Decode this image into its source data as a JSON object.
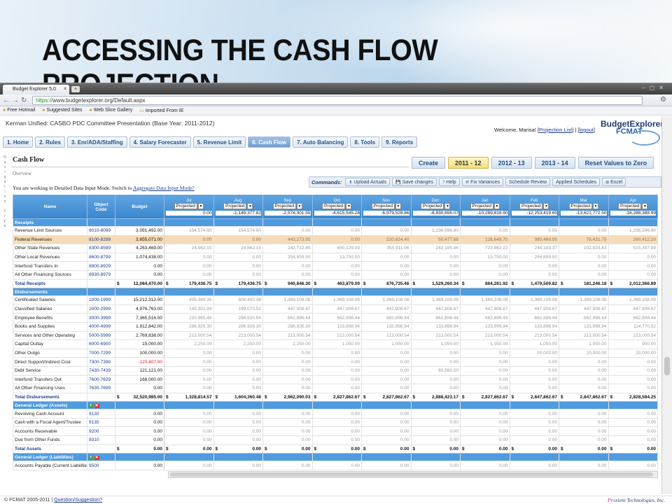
{
  "slide": {
    "title": "ACCESSING THE CASH FLOW PROJECTION"
  },
  "browser": {
    "tab_title": "Budget Explorer 5.0",
    "url_scheme": "https://",
    "url_rest": "www.budgetexplorer.org/Default.aspx",
    "bookmarks": [
      "Free Hotmail",
      "Suggested Sites",
      "Web Slice Gallery",
      "Imported From IE"
    ]
  },
  "app": {
    "district_line": "Kerman Unified: CASBO PDC Committee Presentation (Base Year: 2011-2012)",
    "welcome": {
      "prefix": "Welcome, Marisa! [",
      "projection_link": "Projection List",
      "mid": "] | [",
      "logout_link": "logout",
      "suffix": "]"
    },
    "logo": {
      "name": "BudgetExplorer",
      "sub": "FCMAT"
    },
    "nav": [
      "1. Home",
      "2. Rules",
      "3. Enr/ADA/Staffing",
      "4. Salary Forecaster",
      "5. Revenue Limit",
      "6. Cash Flow",
      "7. Auto Balancing",
      "8. Tools",
      "9. Reports"
    ],
    "vertical_nav": "Navigation Tree",
    "page_title": "Cash Flow",
    "overview": "Overview",
    "year_tabs": [
      "Create",
      "2011 - 12",
      "2012 - 13",
      "2013 - 14",
      "Reset Values to Zero"
    ],
    "mode_text": "You are working in Detailed Data Input Mode. Switch to",
    "mode_link": "Aggregate Data Input Mode?",
    "commands_label": "Commands:",
    "commands": [
      "Upload Actuals",
      "Save changes",
      "Help",
      "Fix Variances",
      "Schedule Review",
      "Applied Schedules",
      "Excel"
    ]
  },
  "grid": {
    "col_name": "Name",
    "col_code": "Object Code",
    "col_budget": "Budget",
    "projected": "Projected",
    "months": [
      "Jul",
      "Aug",
      "Sep",
      "Oct",
      "Nov",
      "Dec",
      "Jan",
      "Feb",
      "Mar",
      "Apr"
    ],
    "opening": [
      "0.00",
      "-1,149,377.82",
      "-2,574,301.55",
      "-4,615,545.28",
      "-6,979,528.86",
      "-8,930,656.07",
      "-10,289,818.90",
      "-12,253,419.65",
      "-13,621,772.50",
      "-16,288,388.99"
    ],
    "sections": [
      {
        "title": "Receipts",
        "rows": [
          {
            "name": "Revenue Limit Sources",
            "code": "8010-8099",
            "budget": "3,091,492.00",
            "values": [
              "154,574.60",
              "154,574.60",
              "0.00",
              "0.00",
              "0.00",
              "1,236,596.80",
              "0.00",
              "0.00",
              "0.00",
              "1,236,596.80"
            ]
          },
          {
            "name": "Federal Revenues",
            "code": "8100-8299",
            "budget": "3,655,071.00",
            "hilite": true,
            "values": [
              "0.00",
              "0.00",
              "443,273.95",
              "0.00",
              "520,824.40",
              "50,477.68",
              "126,649.70",
              "980,466.95",
              "78,421.75",
              "260,412.20"
            ]
          },
          {
            "name": "Other State Revenues",
            "code": "8300-8599",
            "budget": "4,263,469.00",
            "values": [
              "24,862.15",
              "24,862.15",
              "242,712.85",
              "450,129.09",
              "355,911.06",
              "242,185.86",
              "723,862.22",
              "244,183.37",
              "102,824.43",
              "515,357.89"
            ]
          },
          {
            "name": "Other Local Revenues",
            "code": "8600-8799",
            "budget": "1,074,438.00",
            "values": [
              "0.00",
              "0.00",
              "254,859.50",
              "13,750.00",
              "0.00",
              "0.00",
              "13,750.00",
              "254,859.50",
              "0.00",
              "0.00"
            ]
          },
          {
            "name": "Interfund Transfers In",
            "code": "8900-8929",
            "budget": "0.00",
            "values": [
              "0.00",
              "0.00",
              "0.00",
              "0.00",
              "0.00",
              "0.00",
              "0.00",
              "0.00",
              "0.00",
              "0.00"
            ]
          },
          {
            "name": "All Other Financing Sources",
            "code": "8930-8979",
            "budget": "0.00",
            "values": [
              "0.00",
              "0.00",
              "0.00",
              "0.00",
              "0.00",
              "0.00",
              "0.00",
              "0.00",
              "0.00",
              "0.00"
            ]
          }
        ],
        "total": {
          "name": "Total Receipts",
          "budget": "12,084,470.00",
          "values": [
            "179,436.75",
            "179,436.75",
            "940,846.30",
            "463,879.09",
            "876,735.46",
            "1,529,260.34",
            "864,261.92",
            "1,479,509.82",
            "181,246.18",
            "2,012,366.89"
          ]
        }
      },
      {
        "title": "Disbursements",
        "rows": [
          {
            "name": "Certificated Salaries",
            "code": "1000-1999",
            "budget": "15,212,312.00",
            "values": [
              "456,369.36",
              "608,492.48",
              "1,369,108.08",
              "1,369,108.08",
              "1,369,108.08",
              "1,369,108.08",
              "1,369,108.08",
              "1,369,108.08",
              "1,369,108.08",
              "1,369,108.08"
            ]
          },
          {
            "name": "Classified Salaries",
            "code": "2000-2999",
            "budget": "4,976,763.00",
            "values": [
              "149,302.89",
              "199,070.52",
              "447,908.67",
              "447,908.67",
              "447,908.67",
              "447,908.67",
              "447,908.67",
              "447,908.67",
              "447,908.67",
              "447,908.67"
            ]
          },
          {
            "name": "Employee Benefits",
            "code": "3000-3999",
            "budget": "7,365,516.00",
            "values": [
              "220,965.48",
              "294,620.64",
              "662,896.44",
              "662,896.44",
              "662,896.44",
              "662,896.44",
              "662,896.44",
              "662,896.44",
              "662,896.44",
              "662,896.44"
            ]
          },
          {
            "name": "Books and Supplies",
            "code": "4000-4999",
            "budget": "1,912,842.00",
            "values": [
              "286,926.30",
              "286,926.30",
              "286,926.30",
              "133,898.94",
              "133,898.94",
              "133,898.94",
              "133,898.94",
              "133,898.94",
              "133,898.94",
              "114,770.52"
            ]
          },
          {
            "name": "Services and Other Operating",
            "code": "5000-5999",
            "budget": "2,769,838.00",
            "values": [
              "213,000.54",
              "213,000.54",
              "213,000.54",
              "213,000.54",
              "213,000.54",
              "213,000.54",
              "213,000.54",
              "213,000.54",
              "213,000.54",
              "213,000.54"
            ]
          },
          {
            "name": "Capital Outlay",
            "code": "6000-6900",
            "budget": "15,000.00",
            "values": [
              "2,250.00",
              "2,250.00",
              "2,250.00",
              "1,050.00",
              "1,050.00",
              "1,050.00",
              "1,050.00",
              "1,050.00",
              "1,050.00",
              "900.00"
            ]
          },
          {
            "name": "Other Outgo",
            "code": "7000-7299",
            "budget": "100,000.00",
            "values": [
              "0.00",
              "0.00",
              "0.00",
              "0.00",
              "0.00",
              "0.00",
              "0.00",
              "20,000.00",
              "20,000.00",
              "20,000.00"
            ]
          },
          {
            "name": "Direct Support/Indirect Cost",
            "code": "7300-7399",
            "budget": "-120,407.00",
            "neg": true,
            "values": [
              "0.00",
              "0.00",
              "0.00",
              "0.00",
              "0.00",
              "0.00",
              "0.00",
              "0.00",
              "0.00",
              "0.00"
            ]
          },
          {
            "name": "Debt Service",
            "code": "7430-7439",
            "budget": "121,121.00",
            "values": [
              "0.00",
              "0.00",
              "0.00",
              "0.00",
              "0.00",
              "60,560.50",
              "0.00",
              "0.00",
              "0.00",
              "0.00"
            ]
          },
          {
            "name": "Interfund Transfers Out",
            "code": "7600-7629",
            "budget": "168,000.00",
            "values": [
              "0.00",
              "0.00",
              "0.00",
              "0.00",
              "0.00",
              "0.00",
              "0.00",
              "0.00",
              "0.00",
              "0.00"
            ]
          },
          {
            "name": "All Other Financing Uses",
            "code": "7630-7699",
            "budget": "0.00",
            "values": [
              "0.00",
              "0.00",
              "0.00",
              "0.00",
              "0.00",
              "0.00",
              "0.00",
              "0.00",
              "0.00",
              "0.00"
            ]
          }
        ],
        "total": {
          "name": "Total Disbursements",
          "budget": "32,520,985.00",
          "values": [
            "1,328,814.57",
            "1,604,360.48",
            "2,982,090.03",
            "2,827,862.67",
            "2,827,862.67",
            "2,888,423.17",
            "2,827,862.67",
            "2,847,862.67",
            "2,847,862.67",
            "2,828,584.25"
          ]
        }
      },
      {
        "title": "General Ledger (Assets)",
        "icons": true,
        "rows": [
          {
            "name": "Revolving Cash Account",
            "code": "9130",
            "budget": "0.00",
            "values": [
              "0.00",
              "0.00",
              "0.00",
              "0.00",
              "0.00",
              "0.00",
              "0.00",
              "0.00",
              "0.00",
              "0.00"
            ]
          },
          {
            "name": "Cash with a Fiscal Agent/Trustee",
            "code": "9135",
            "budget": "0.00",
            "values": [
              "0.00",
              "0.00",
              "0.00",
              "0.00",
              "0.00",
              "0.00",
              "0.00",
              "0.00",
              "0.00",
              "0.00"
            ]
          },
          {
            "name": "Accounts Receivable",
            "code": "9200",
            "budget": "0.00",
            "values": [
              "0.00",
              "0.00",
              "0.00",
              "0.00",
              "0.00",
              "0.00",
              "0.00",
              "0.00",
              "0.00",
              "0.00"
            ]
          },
          {
            "name": "Due from Other Funds",
            "code": "9310",
            "budget": "0.00",
            "values": [
              "0.00",
              "0.00",
              "0.00",
              "0.00",
              "0.00",
              "0.00",
              "0.00",
              "0.00",
              "0.00",
              "0.00"
            ]
          }
        ],
        "total": {
          "name": "Total Assets",
          "budget": "0.00",
          "values": [
            "0.00",
            "0.00",
            "0.00",
            "0.00",
            "0.00",
            "0.00",
            "0.00",
            "0.00",
            "0.00",
            "0.00"
          ]
        }
      },
      {
        "title": "General Ledger (Liabilities)",
        "icons": true,
        "rows": [
          {
            "name": "Accounts Payable (Current Liabilities)",
            "code": "9500",
            "budget": "0.00",
            "values": [
              "0.00",
              "0.00",
              "0.00",
              "0.00",
              "0.00",
              "0.00",
              "0.00",
              "0.00",
              "0.00",
              "0.00"
            ]
          }
        ]
      }
    ]
  },
  "footer": {
    "copyright": "© FCMAT 2005-2011 |",
    "question_link": "Question/Suggestion?",
    "credit_prefix": "Pro",
    "credit_rest": "xient Technologies, Inc."
  }
}
